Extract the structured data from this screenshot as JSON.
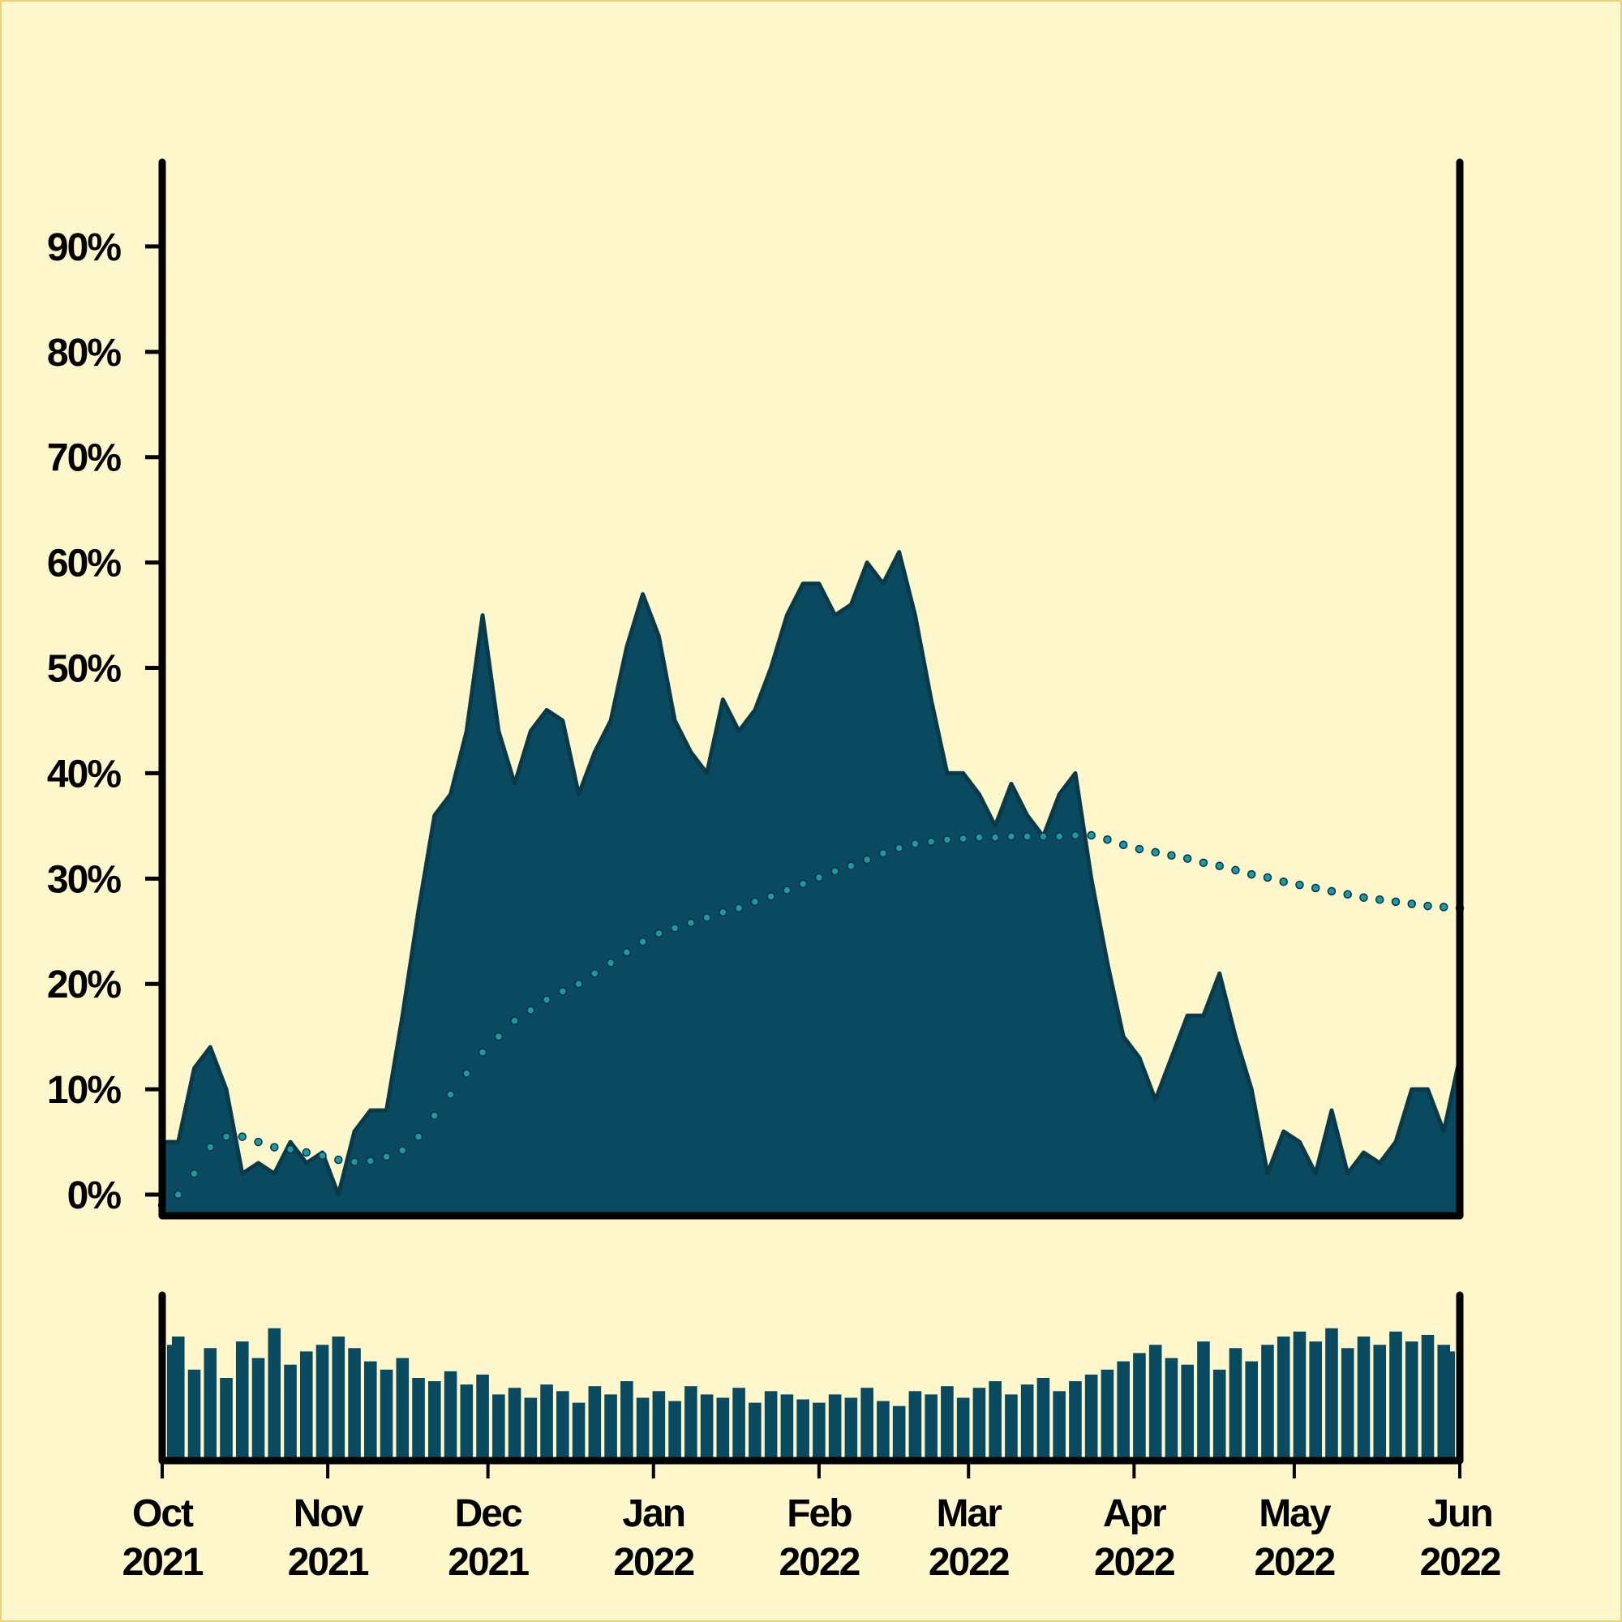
{
  "chart_data": [
    {
      "type": "area",
      "x": [
        0,
        3,
        6,
        9,
        12,
        15,
        18,
        21,
        24,
        27,
        30,
        33,
        36,
        39,
        42,
        45,
        48,
        51,
        54,
        57,
        60,
        63,
        66,
        69,
        72,
        75,
        78,
        81,
        84,
        87,
        90,
        93,
        96,
        99,
        102,
        105,
        108,
        111,
        114,
        117,
        120,
        123,
        126,
        129,
        132,
        135,
        138,
        141,
        144,
        147,
        150,
        153,
        156,
        159,
        162,
        165,
        168,
        171,
        174,
        177,
        180,
        183,
        186,
        189,
        192,
        195,
        198,
        201,
        204,
        207,
        210,
        213,
        216,
        219,
        222,
        225,
        228,
        231,
        234,
        237,
        240,
        243
      ],
      "xlim": [
        0,
        243
      ],
      "ylim": [
        -2,
        98
      ],
      "yticks": [
        {
          "value": 0,
          "label": "0%"
        },
        {
          "value": 10,
          "label": "10%"
        },
        {
          "value": 20,
          "label": "20%"
        },
        {
          "value": 30,
          "label": "30%"
        },
        {
          "value": 40,
          "label": "40%"
        },
        {
          "value": 50,
          "label": "50%"
        },
        {
          "value": 60,
          "label": "60%"
        },
        {
          "value": 70,
          "label": "70%"
        },
        {
          "value": 80,
          "label": "80%"
        },
        {
          "value": 90,
          "label": "90%"
        }
      ],
      "series": [
        {
          "type": "area",
          "color": "#0a4a60",
          "values": [
            5,
            5,
            12,
            14,
            10,
            2,
            3,
            2,
            5,
            3,
            4,
            0,
            6,
            8,
            8,
            17,
            27,
            36,
            38,
            44,
            55,
            44,
            39,
            44,
            46,
            45,
            38,
            42,
            45,
            52,
            57,
            53,
            45,
            42,
            40,
            47,
            44,
            46,
            50,
            55,
            58,
            58,
            55,
            56,
            60,
            58,
            61,
            55,
            47,
            40,
            40,
            38,
            35,
            39,
            36,
            34,
            38,
            40,
            30,
            22,
            15,
            13,
            9,
            13,
            17,
            17,
            21,
            15,
            10,
            2,
            6,
            5,
            2,
            8,
            2,
            4,
            3,
            5,
            10,
            10,
            6,
            13
          ]
        },
        {
          "type": "dots",
          "color": "#1a9aa8",
          "values": [
            -1,
            0,
            2,
            4.5,
            5.5,
            5.5,
            5,
            4.5,
            4.3,
            4,
            3.7,
            3.3,
            3.1,
            3.2,
            3.6,
            4.2,
            5.5,
            7.5,
            9.5,
            11.5,
            13.5,
            15,
            16.5,
            17.5,
            18.5,
            19.3,
            20,
            21,
            22,
            23,
            24,
            24.8,
            25.3,
            25.8,
            26.3,
            26.8,
            27.2,
            27.8,
            28.3,
            28.9,
            29.5,
            30.1,
            30.7,
            31.2,
            31.8,
            32.4,
            32.9,
            33.3,
            33.5,
            33.7,
            33.8,
            33.9,
            33.9,
            34,
            34,
            34,
            34,
            34.1,
            34.1,
            33.7,
            33.2,
            32.8,
            32.5,
            32.2,
            31.9,
            31.5,
            31.2,
            30.8,
            30.4,
            30.1,
            29.7,
            29.4,
            29.1,
            28.8,
            28.5,
            28.2,
            28,
            27.8,
            27.6,
            27.4,
            27.3,
            27.2
          ]
        }
      ]
    },
    {
      "type": "bar",
      "x": [
        0,
        3,
        6,
        9,
        12,
        15,
        18,
        21,
        24,
        27,
        30,
        33,
        36,
        39,
        42,
        45,
        48,
        51,
        54,
        57,
        60,
        63,
        66,
        69,
        72,
        75,
        78,
        81,
        84,
        87,
        90,
        93,
        96,
        99,
        102,
        105,
        108,
        111,
        114,
        117,
        120,
        123,
        126,
        129,
        132,
        135,
        138,
        141,
        144,
        147,
        150,
        153,
        156,
        159,
        162,
        165,
        168,
        171,
        174,
        177,
        180,
        183,
        186,
        189,
        192,
        195,
        198,
        201,
        204,
        207,
        210,
        213,
        216,
        219,
        222,
        225,
        228,
        231,
        234,
        237,
        240,
        243
      ],
      "xlim": [
        0,
        243
      ],
      "ylim": [
        0,
        100
      ],
      "color": "#0a4a60",
      "values": [
        70,
        75,
        55,
        68,
        50,
        72,
        62,
        80,
        58,
        66,
        70,
        75,
        68,
        60,
        55,
        62,
        50,
        48,
        54,
        46,
        52,
        40,
        44,
        38,
        46,
        42,
        35,
        45,
        40,
        48,
        38,
        42,
        36,
        45,
        40,
        38,
        44,
        35,
        42,
        40,
        37,
        35,
        40,
        38,
        44,
        36,
        33,
        42,
        40,
        45,
        38,
        44,
        48,
        40,
        46,
        50,
        42,
        48,
        52,
        55,
        60,
        65,
        70,
        62,
        58,
        72,
        55,
        68,
        60,
        70,
        75,
        78,
        72,
        80,
        68,
        75,
        70,
        78,
        72,
        76,
        70,
        66
      ],
      "xticks": [
        {
          "value": 0,
          "label": "Oct\n2021"
        },
        {
          "value": 31,
          "label": "Nov\n2021"
        },
        {
          "value": 61,
          "label": "Dec\n2021"
        },
        {
          "value": 92,
          "label": "Jan\n2022"
        },
        {
          "value": 123,
          "label": "Feb\n2022"
        },
        {
          "value": 151,
          "label": "Mar\n2022"
        },
        {
          "value": 182,
          "label": "Apr\n2022"
        },
        {
          "value": 212,
          "label": "May\n2022"
        },
        {
          "value": 243,
          "label": "Jun\n2022"
        }
      ]
    }
  ]
}
